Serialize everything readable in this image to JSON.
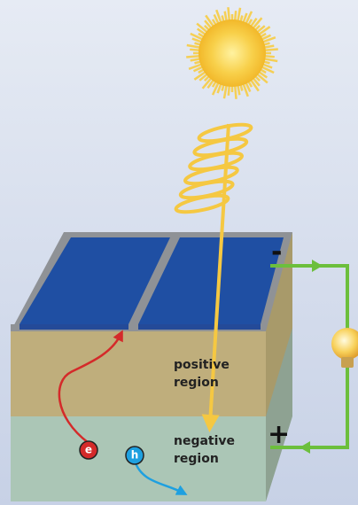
{
  "terminals": {
    "negative": "-",
    "positive": "+"
  },
  "regions": {
    "positive": {
      "line1": "positive",
      "line2": "region"
    },
    "negative": {
      "line1": "negative",
      "line2": "region"
    }
  },
  "carriers": {
    "electron": "e",
    "hole": "h"
  }
}
